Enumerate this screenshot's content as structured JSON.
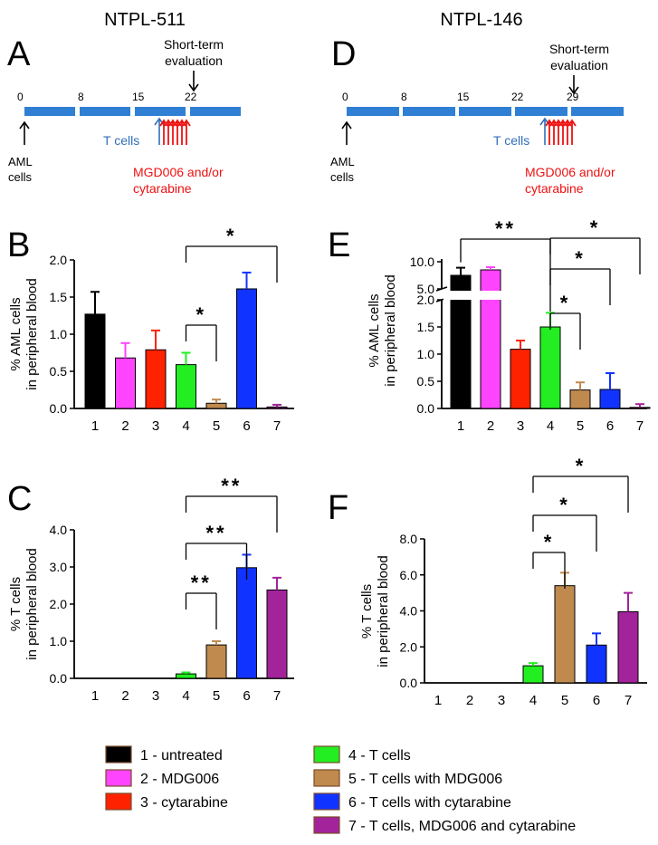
{
  "titles": {
    "left": "NTPL-511",
    "right": "NTPL-146"
  },
  "panel_letters": {
    "A": "A",
    "B": "B",
    "C": "C",
    "D": "D",
    "E": "E",
    "F": "F"
  },
  "timelines": [
    {
      "panel": "A",
      "days": [
        "0",
        "8",
        "15",
        "22"
      ],
      "eval_label": [
        "Short-term",
        "evaluation"
      ],
      "aml_label": [
        "AML",
        "cells"
      ],
      "tcells_label": "T cells",
      "drug_label": [
        "MGD006 and/or",
        "cytarabine"
      ]
    },
    {
      "panel": "D",
      "days": [
        "0",
        "8",
        "15",
        "22",
        "29"
      ],
      "eval_label": [
        "Short-term",
        "evaluation"
      ],
      "aml_label": [
        "AML",
        "cells"
      ],
      "tcells_label": "T cells",
      "drug_label": [
        "MGD006 and/or",
        "cytarabine"
      ]
    }
  ],
  "colors": {
    "black": "#000000",
    "magenta": "#ff44ff",
    "red": "#ff2200",
    "green": "#22ee22",
    "brown": "#c08a4e",
    "blue": "#1133ff",
    "purple": "#a3239b",
    "timeline": "#2f7fd4",
    "tcell_text": "#2f6fb8",
    "drug_text": "#ee1111"
  },
  "chart_data": [
    {
      "panel": "B",
      "type": "bar",
      "ylabel": [
        "% AML cells",
        "in peripheral blood"
      ],
      "categories": [
        "1",
        "2",
        "3",
        "4",
        "5",
        "6",
        "7"
      ],
      "values": [
        1.27,
        0.68,
        0.79,
        0.59,
        0.07,
        1.61,
        0.02
      ],
      "errors": [
        0.3,
        0.2,
        0.26,
        0.16,
        0.05,
        0.22,
        0.03
      ],
      "ylim": [
        0,
        2.0
      ],
      "yticks": [
        "0.0",
        "0.5",
        "1.0",
        "1.5",
        "2.0"
      ],
      "significance": [
        {
          "from": 4,
          "to": 5,
          "label": "*"
        },
        {
          "from": 4,
          "to": 7,
          "label": "*"
        }
      ]
    },
    {
      "panel": "C",
      "type": "bar",
      "ylabel": [
        "% T cells",
        "in peripheral blood"
      ],
      "categories": [
        "1",
        "2",
        "3",
        "4",
        "5",
        "6",
        "7"
      ],
      "values": [
        0,
        0,
        0,
        0.12,
        0.9,
        2.98,
        2.38
      ],
      "errors": [
        0,
        0,
        0,
        0.04,
        0.1,
        0.35,
        0.33
      ],
      "ylim": [
        0,
        4.0
      ],
      "yticks": [
        "0.0",
        "1.0",
        "2.0",
        "3.0",
        "4.0"
      ],
      "significance": [
        {
          "from": 4,
          "to": 5,
          "label": "**"
        },
        {
          "from": 4,
          "to": 6,
          "label": "**"
        },
        {
          "from": 4,
          "to": 7,
          "label": "**"
        }
      ]
    },
    {
      "panel": "E",
      "type": "bar",
      "ylabel": [
        "% AML cells",
        "in peripheral blood"
      ],
      "categories": [
        "1",
        "2",
        "3",
        "4",
        "5",
        "6",
        "7"
      ],
      "values": [
        7.5,
        8.5,
        1.09,
        1.5,
        0.34,
        0.35,
        0.02
      ],
      "errors": [
        1.4,
        0.5,
        0.16,
        0.26,
        0.14,
        0.3,
        0.06
      ],
      "ylim": [
        0,
        10.0
      ],
      "axis_break": [
        2.0,
        5.0
      ],
      "yticks": [
        "0.0",
        "0.5",
        "1.0",
        "1.5",
        "2.0",
        "5.0",
        "10.0"
      ],
      "significance": [
        {
          "from": 1,
          "to": 4,
          "label": "**"
        },
        {
          "from": 4,
          "to": 5,
          "label": "*"
        },
        {
          "from": 4,
          "to": 6,
          "label": "*"
        },
        {
          "from": 4,
          "to": 7,
          "label": "*"
        }
      ]
    },
    {
      "panel": "F",
      "type": "bar",
      "ylabel": [
        "% T cells",
        "in peripheral blood"
      ],
      "categories": [
        "1",
        "2",
        "3",
        "4",
        "5",
        "6",
        "7"
      ],
      "values": [
        0,
        0,
        0,
        0.95,
        5.4,
        2.1,
        3.95
      ],
      "errors": [
        0,
        0,
        0,
        0.15,
        0.72,
        0.65,
        1.05
      ],
      "ylim": [
        0,
        8.0
      ],
      "yticks": [
        "0.0",
        "2.0",
        "4.0",
        "6.0",
        "8.0"
      ],
      "significance": [
        {
          "from": 4,
          "to": 5,
          "label": "*"
        },
        {
          "from": 4,
          "to": 6,
          "label": "*"
        },
        {
          "from": 4,
          "to": 7,
          "label": "*"
        }
      ]
    }
  ],
  "legend": [
    {
      "label": "1 - untreated",
      "color": "#000000"
    },
    {
      "label": "2 - MDG006",
      "color": "#ff44ff"
    },
    {
      "label": "3 - cytarabine",
      "color": "#ff2200"
    },
    {
      "label": "4 - T cells",
      "color": "#22ee22"
    },
    {
      "label": "5 - T cells with MDG006",
      "color": "#c08a4e"
    },
    {
      "label": "6 - T cells with cytarabine",
      "color": "#1133ff"
    },
    {
      "label": "7 - T cells, MDG006 and cytarabine",
      "color": "#a3239b"
    }
  ]
}
